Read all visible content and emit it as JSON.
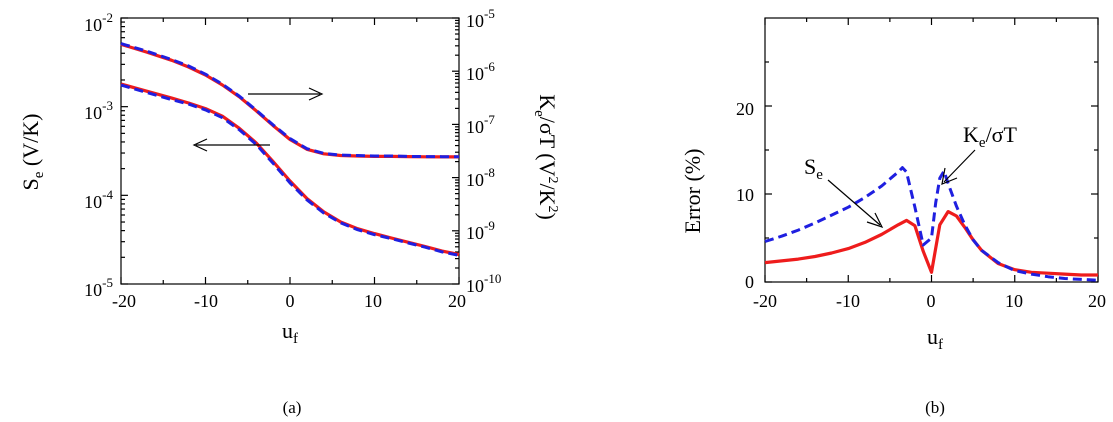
{
  "panel_a": {
    "caption": "(a)",
    "y_left_label": "S",
    "y_left_sub": "e",
    "y_left_unit": " (V/K)",
    "y_right_label": "K",
    "y_right_sub": "e",
    "y_right_mid": "/σT (V",
    "y_right_sup1": "2",
    "y_right_mid2": "/K",
    "y_right_sup2": "2",
    "y_right_end": ")",
    "x_label": "u",
    "x_sub": "f",
    "x_ticks": [
      "-20",
      "-10",
      "0",
      "10",
      "20"
    ],
    "y_left_ticks": [
      {
        "base": "10",
        "exp": "-2"
      },
      {
        "base": "10",
        "exp": "-3"
      },
      {
        "base": "10",
        "exp": "-4"
      },
      {
        "base": "10",
        "exp": "-5"
      }
    ],
    "y_right_ticks": [
      {
        "base": "10",
        "exp": "-5"
      },
      {
        "base": "10",
        "exp": "-6"
      },
      {
        "base": "10",
        "exp": "-7"
      },
      {
        "base": "10",
        "exp": "-8"
      },
      {
        "base": "10",
        "exp": "-9"
      },
      {
        "base": "10",
        "exp": "-10"
      }
    ]
  },
  "panel_b": {
    "caption": "(b)",
    "y_label": "Error (%)",
    "x_label": "u",
    "x_sub": "f",
    "x_ticks": [
      "-20",
      "-10",
      "0",
      "10",
      "20"
    ],
    "y_ticks": [
      "0",
      "10",
      "20"
    ],
    "anno_se": "S",
    "anno_se_sub": "e",
    "anno_ke": "K",
    "anno_ke_sub": "e",
    "anno_ke_rest": "/σT"
  },
  "colors": {
    "red": "#ee1c1c",
    "blue": "#1f1fe0",
    "axis": "#000000"
  },
  "chart_data": [
    {
      "type": "line",
      "xlim": [
        -20,
        20
      ],
      "ylim_left": [
        1e-05,
        0.01
      ],
      "ylim_right": [
        1e-10,
        1e-05
      ],
      "y_scale": "log",
      "legend": "none",
      "series": [
        {
          "axis": "right",
          "style": "solid-red",
          "x": [
            -20,
            -17,
            -14,
            -12,
            -10,
            -8,
            -6,
            -4,
            -2,
            0,
            2,
            4,
            6,
            8,
            10,
            12,
            14,
            16,
            18,
            20
          ],
          "y": [
            3.2e-06,
            2.3e-06,
            1.6e-06,
            1.2e-06,
            8.5e-07,
            5.5e-07,
            3.3e-07,
            1.8e-07,
            9.5e-08,
            5.2e-08,
            3.4e-08,
            2.8e-08,
            2.6e-08,
            2.55e-08,
            2.5e-08,
            2.5e-08,
            2.48e-08,
            2.46e-08,
            2.45e-08,
            2.45e-08
          ]
        },
        {
          "axis": "right",
          "style": "dashed-blue",
          "x": [
            -20,
            -17,
            -14,
            -12,
            -10,
            -8,
            -6,
            -4,
            -2,
            0,
            2,
            4,
            6,
            8,
            10,
            12,
            14,
            16,
            18,
            20
          ],
          "y": [
            3.3e-06,
            2.4e-06,
            1.65e-06,
            1.25e-06,
            8.8e-07,
            5.7e-07,
            3.4e-07,
            1.85e-07,
            9.8e-08,
            5.4e-08,
            3.5e-08,
            2.85e-08,
            2.65e-08,
            2.6e-08,
            2.55e-08,
            2.55e-08,
            2.5e-08,
            2.48e-08,
            2.47e-08,
            2.46e-08
          ]
        },
        {
          "axis": "left",
          "style": "solid-red",
          "x": [
            -20,
            -17,
            -14,
            -12,
            -10,
            -8,
            -6,
            -4,
            -2,
            0,
            2,
            4,
            6,
            8,
            10,
            12,
            14,
            16,
            18,
            20
          ],
          "y": [
            0.0018,
            0.0015,
            0.00125,
            0.0011,
            0.00095,
            0.00078,
            0.00057,
            0.00039,
            0.00024,
            0.000145,
            9.2e-05,
            6.5e-05,
            5e-05,
            4.2e-05,
            3.7e-05,
            3.3e-05,
            2.95e-05,
            2.65e-05,
            2.35e-05,
            2.15e-05
          ]
        },
        {
          "axis": "left",
          "style": "dashed-blue",
          "x": [
            -20,
            -17,
            -14,
            -12,
            -10,
            -8,
            -6,
            -4,
            -2,
            0,
            2,
            4,
            6,
            8,
            10,
            12,
            14,
            16,
            18,
            20
          ],
          "y": [
            0.00175,
            0.00145,
            0.0012,
            0.00107,
            0.00092,
            0.00075,
            0.00055,
            0.000375,
            0.00023,
            0.000138,
            8.9e-05,
            6.3e-05,
            4.9e-05,
            4.1e-05,
            3.6e-05,
            3.25e-05,
            2.9e-05,
            2.6e-05,
            2.3e-05,
            2.1e-05
          ]
        }
      ]
    },
    {
      "type": "line",
      "xlim": [
        -20,
        20
      ],
      "ylim": [
        0,
        30
      ],
      "legend": "none",
      "series": [
        {
          "label_ref": "S_e",
          "style": "solid-red",
          "x": [
            -20,
            -18,
            -16,
            -14,
            -12,
            -10,
            -8,
            -6,
            -4,
            -3,
            -2,
            -1,
            0,
            1,
            2,
            3,
            4,
            5,
            6,
            8,
            10,
            12,
            14,
            16,
            18,
            20
          ],
          "y": [
            2.2,
            2.4,
            2.6,
            2.9,
            3.3,
            3.8,
            4.5,
            5.4,
            6.5,
            7.0,
            6.4,
            3.5,
            1.1,
            6.5,
            8.0,
            7.5,
            6.2,
            4.8,
            3.6,
            2.1,
            1.4,
            1.1,
            1.0,
            0.9,
            0.8,
            0.8
          ]
        },
        {
          "label_ref": "K_e/σT",
          "style": "dashed-blue",
          "x": [
            -20,
            -18,
            -16,
            -14,
            -12,
            -10,
            -8,
            -6,
            -4,
            -3.5,
            -3,
            -2,
            -1,
            0,
            0.5,
            1,
            1.5,
            2,
            3,
            4,
            5,
            6,
            8,
            10,
            12,
            14,
            16,
            18,
            20
          ],
          "y": [
            4.6,
            5.2,
            5.9,
            6.7,
            7.6,
            8.5,
            9.6,
            10.9,
            12.5,
            13.0,
            12.5,
            8.5,
            4.2,
            5.0,
            9.0,
            11.8,
            12.6,
            11.2,
            8.6,
            6.5,
            4.8,
            3.6,
            2.2,
            1.3,
            0.9,
            0.6,
            0.4,
            0.3,
            0.2
          ]
        }
      ]
    }
  ]
}
